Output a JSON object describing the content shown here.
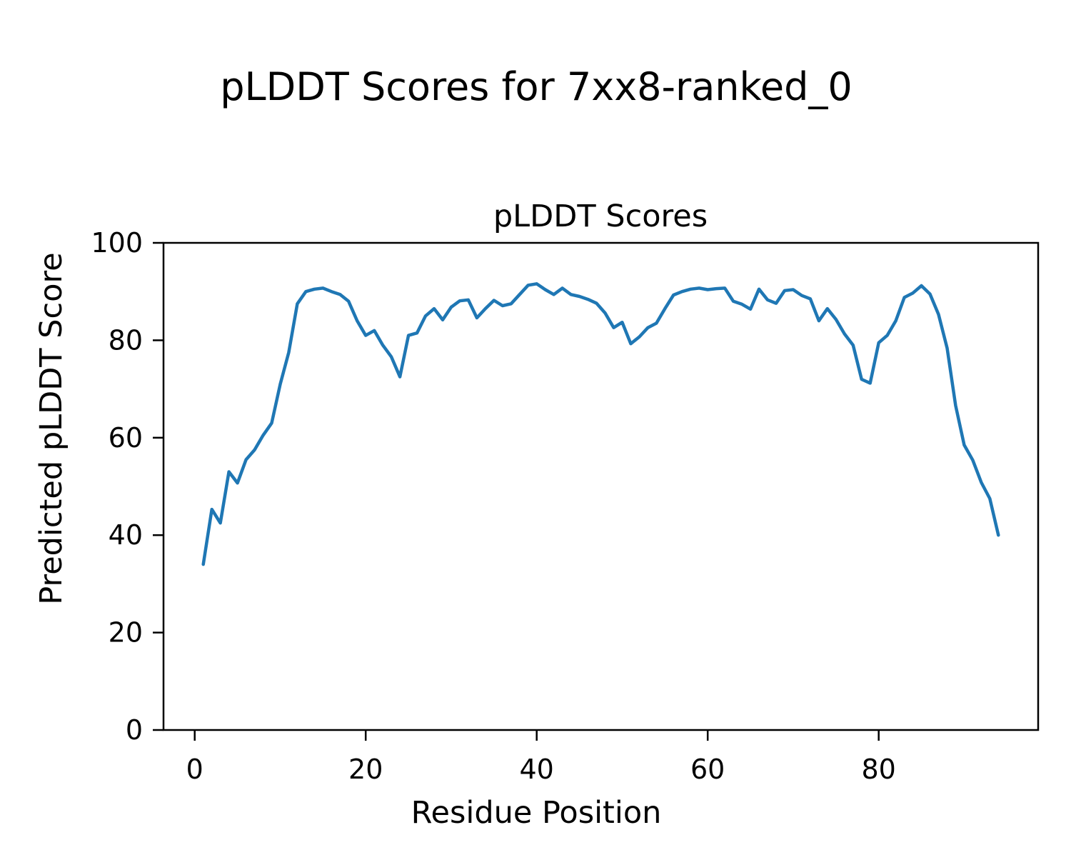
{
  "figure": {
    "suptitle": "pLDDT Scores for 7xx8-ranked_0"
  },
  "chart_data": {
    "type": "line",
    "title": "pLDDT Scores",
    "xlabel": "Residue Position",
    "ylabel": "Predicted pLDDT Score",
    "xlim": [
      -3.65,
      98.65
    ],
    "ylim": [
      0,
      100
    ],
    "xticks": [
      0,
      20,
      40,
      60,
      80
    ],
    "yticks": [
      0,
      20,
      40,
      60,
      80,
      100
    ],
    "grid": false,
    "line_color": "#1f77b4",
    "series": [
      {
        "name": "pLDDT",
        "x": [
          1,
          2,
          3,
          4,
          5,
          6,
          7,
          8,
          9,
          10,
          11,
          12,
          13,
          14,
          15,
          16,
          17,
          18,
          19,
          20,
          21,
          22,
          23,
          24,
          25,
          26,
          27,
          28,
          29,
          30,
          31,
          32,
          33,
          34,
          35,
          36,
          37,
          38,
          39,
          40,
          41,
          42,
          43,
          44,
          45,
          46,
          47,
          48,
          49,
          50,
          51,
          52,
          53,
          54,
          55,
          56,
          57,
          58,
          59,
          60,
          61,
          62,
          63,
          64,
          65,
          66,
          67,
          68,
          69,
          70,
          71,
          72,
          73,
          74,
          75,
          76,
          77,
          78,
          79,
          80,
          81,
          82,
          83,
          84,
          85,
          86,
          87,
          88,
          89,
          90,
          91,
          92,
          93,
          94
        ],
        "values": [
          34.0,
          45.3,
          42.5,
          53.0,
          50.7,
          55.5,
          57.5,
          60.5,
          63.0,
          71.0,
          77.5,
          87.5,
          90.0,
          90.5,
          90.7,
          90.0,
          89.4,
          88.0,
          84.0,
          81.0,
          82.0,
          79.0,
          76.6,
          72.5,
          81.0,
          81.5,
          85.0,
          86.5,
          84.2,
          86.8,
          88.1,
          88.3,
          84.6,
          86.5,
          88.2,
          87.1,
          87.5,
          89.4,
          91.3,
          91.6,
          90.4,
          89.4,
          90.7,
          89.4,
          89.0,
          88.4,
          87.6,
          85.6,
          82.6,
          83.7,
          79.3,
          80.7,
          82.6,
          83.5,
          86.5,
          89.3,
          90.0,
          90.5,
          90.7,
          90.4,
          90.6,
          90.7,
          88.0,
          87.4,
          86.4,
          90.5,
          88.3,
          87.6,
          90.2,
          90.4,
          89.2,
          88.5,
          84.0,
          86.5,
          84.3,
          81.3,
          79.0,
          72.0,
          71.2,
          79.5,
          81.0,
          84.0,
          88.8,
          89.7,
          91.2,
          89.5,
          85.3,
          78.4,
          66.6,
          58.5,
          55.4,
          50.8,
          47.5,
          40.0
        ]
      }
    ]
  }
}
